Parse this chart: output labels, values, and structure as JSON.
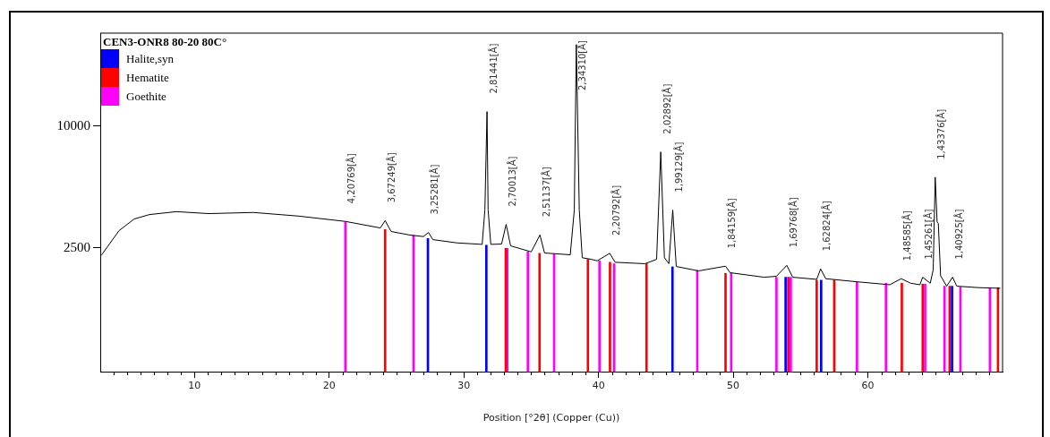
{
  "chart_data": {
    "type": "line",
    "legend_title": "CEN3-ONR8 80-20 80C°",
    "xlabel": "Position [°2θ] (Copper (Cu))",
    "xlim": [
      3,
      70
    ],
    "ylim": [
      -5100,
      15700
    ],
    "xticks": [
      {
        "value": 4,
        "label": null
      },
      {
        "value": 5,
        "label": null
      },
      {
        "value": 6,
        "label": null
      },
      {
        "value": 7,
        "label": null
      },
      {
        "value": 8,
        "label": null
      },
      {
        "value": 9,
        "label": null
      },
      10,
      {
        "value": 11,
        "label": null
      },
      {
        "value": 12,
        "label": null
      },
      {
        "value": 13,
        "label": null
      },
      {
        "value": 14,
        "label": null
      },
      {
        "value": 15,
        "label": null
      },
      {
        "value": 16,
        "label": null
      },
      {
        "value": 17,
        "label": null
      },
      {
        "value": 18,
        "label": null
      },
      {
        "value": 19,
        "label": null
      },
      20,
      {
        "value": 21,
        "label": null
      },
      {
        "value": 22,
        "label": null
      },
      {
        "value": 23,
        "label": null
      },
      {
        "value": 24,
        "label": null
      },
      {
        "value": 25,
        "label": null
      },
      {
        "value": 26,
        "label": null
      },
      {
        "value": 27,
        "label": null
      },
      {
        "value": 28,
        "label": null
      },
      {
        "value": 29,
        "label": null
      },
      30,
      {
        "value": 31,
        "label": null
      },
      {
        "value": 32,
        "label": null
      },
      {
        "value": 33,
        "label": null
      },
      {
        "value": 34,
        "label": null
      },
      {
        "value": 35,
        "label": null
      },
      {
        "value": 36,
        "label": null
      },
      {
        "value": 37,
        "label": null
      },
      {
        "value": 38,
        "label": null
      },
      {
        "value": 39,
        "label": null
      },
      40,
      {
        "value": 41,
        "label": null
      },
      {
        "value": 42,
        "label": null
      },
      {
        "value": 43,
        "label": null
      },
      {
        "value": 44,
        "label": null
      },
      {
        "value": 45,
        "label": null
      },
      {
        "value": 46,
        "label": null
      },
      {
        "value": 47,
        "label": null
      },
      {
        "value": 48,
        "label": null
      },
      {
        "value": 49,
        "label": null
      },
      50,
      {
        "value": 51,
        "label": null
      },
      {
        "value": 52,
        "label": null
      },
      {
        "value": 53,
        "label": null
      },
      {
        "value": 54,
        "label": null
      },
      {
        "value": 55,
        "label": null
      },
      {
        "value": 56,
        "label": null
      },
      {
        "value": 57,
        "label": null
      },
      {
        "value": 58,
        "label": null
      },
      {
        "value": 59,
        "label": null
      },
      60,
      {
        "value": 61,
        "label": null
      },
      {
        "value": 62,
        "label": null
      },
      {
        "value": 63,
        "label": null
      },
      {
        "value": 64,
        "label": null
      },
      {
        "value": 65,
        "label": null
      },
      {
        "value": 66,
        "label": null
      },
      {
        "value": 67,
        "label": null
      },
      {
        "value": 68,
        "label": null
      },
      {
        "value": 69,
        "label": null
      }
    ],
    "yticks": [
      2500,
      10000
    ],
    "grid": false,
    "legend": "top left",
    "marker": "none",
    "series": [
      {
        "color": "#000000",
        "x": [
          3.0,
          3.1,
          4.39,
          5.52,
          6.65,
          8.65,
          11.05,
          14.37,
          17.7,
          21.2,
          23.8,
          24.15,
          24.6,
          26.0,
          27.0,
          27.37,
          27.7,
          29.5,
          31.36,
          31.56,
          31.72,
          31.8,
          32.0,
          32.8,
          33.14,
          33.47,
          35.0,
          35.65,
          35.99,
          37.9,
          38.2,
          38.35,
          38.57,
          38.79,
          39.46,
          39.9,
          40.83,
          41.23,
          43.45,
          44.31,
          44.62,
          44.89,
          45.22,
          45.51,
          45.77,
          47.43,
          49.43,
          49.77,
          52.3,
          53.21,
          53.98,
          54.42,
          56.2,
          56.49,
          56.87,
          59.19,
          61.63,
          62.47,
          63.19,
          63.86,
          64.07,
          64.63,
          64.85,
          65.0,
          65.14,
          65.23,
          65.4,
          65.85,
          66.29,
          66.6,
          68.27,
          69.84
        ],
        "values": [
          2040,
          2070,
          3560,
          4280,
          4550,
          4730,
          4610,
          4680,
          4460,
          4130,
          3730,
          4180,
          3510,
          3290,
          3200,
          3450,
          3010,
          2810,
          2720,
          4830,
          10880,
          4830,
          2720,
          2740,
          3950,
          2630,
          2260,
          3300,
          2190,
          2080,
          4830,
          15000,
          4830,
          1900,
          1800,
          1710,
          2170,
          1620,
          1530,
          1800,
          8400,
          1910,
          1530,
          4830,
          1360,
          1090,
          1380,
          980,
          700,
          760,
          1430,
          700,
          570,
          1210,
          610,
          420,
          240,
          610,
          330,
          240,
          700,
          330,
          1160,
          6850,
          4100,
          4000,
          790,
          150,
          700,
          150,
          60,
          20
        ]
      },
      {
        "type": "bar",
        "name": "Halite,syn",
        "color": "#0000ff",
        "x": [
          27.33,
          31.67,
          45.49,
          53.89,
          56.53,
          66.25
        ],
        "base": [
          -5100,
          -5100,
          -5100,
          -5100,
          -5100,
          -5100
        ],
        "values": [
          8180,
          7770,
          6440,
          5800,
          5620,
          5250
        ]
      },
      {
        "type": "bar",
        "name": "Hematite",
        "color": "#ff0000",
        "x": [
          24.15,
          33.11,
          35.62,
          39.21,
          40.85,
          43.56,
          49.43,
          54.09,
          56.2,
          57.5,
          62.52,
          64.07,
          66.07,
          69.66
        ],
        "base": [
          -5100,
          -5100,
          -5100,
          -5100,
          -5100,
          -5100,
          -5100,
          -5100,
          -5100,
          -5100,
          -5100,
          -5100,
          -5100,
          -5100
        ],
        "values": [
          8730,
          7580,
          7270,
          6900,
          6720,
          6630,
          6040,
          5800,
          5620,
          5620,
          5430,
          5380,
          5250,
          5160
        ]
      },
      {
        "type": "bar",
        "name": "Goethite",
        "color": "#ff00ff",
        "x": [
          21.2,
          26.26,
          33.22,
          34.75,
          36.7,
          40.07,
          41.16,
          47.33,
          49.85,
          53.21,
          54.27,
          59.19,
          61.34,
          64.25,
          65.69,
          66.87,
          69.06
        ],
        "base": [
          -5100,
          -5100,
          -5100,
          -5100,
          -5100,
          -5100,
          -5100,
          -5100,
          -5100,
          -5100,
          -5100,
          -5100,
          -5100,
          -5100,
          -5100,
          -5100,
          -5100
        ],
        "values": [
          9200,
          8370,
          7580,
          7360,
          7210,
          6810,
          6630,
          6220,
          6040,
          5800,
          5800,
          5520,
          5430,
          5380,
          5250,
          5190,
          5160
        ]
      }
    ],
    "annotations": [
      {
        "text": "4,20769[Å]",
        "x": 21.2,
        "y": 4130
      },
      {
        "text": "3,67249[Å]",
        "x": 24.15,
        "y": 4180
      },
      {
        "text": "3,25281[Å]",
        "x": 27.37,
        "y": 3450
      },
      {
        "text": "2,81441[Å]",
        "x": 31.72,
        "y": 10880
      },
      {
        "text": "2,70013[Å]",
        "x": 33.14,
        "y": 3950
      },
      {
        "text": "2,51137[Å]",
        "x": 35.65,
        "y": 3300
      },
      {
        "text": "2,34310[Å]",
        "x": 38.35,
        "y": 15000
      },
      {
        "text": "2,20792[Å]",
        "x": 40.83,
        "y": 2170
      },
      {
        "text": "2,02892[Å]",
        "x": 44.62,
        "y": 8400
      },
      {
        "text": "1,99129[Å]",
        "x": 45.51,
        "y": 4830
      },
      {
        "text": "1,84159[Å]",
        "x": 49.43,
        "y": 1380
      },
      {
        "text": "1,69768[Å]",
        "x": 53.98,
        "y": 1430
      },
      {
        "text": "1,62824[Å]",
        "x": 56.49,
        "y": 1210
      },
      {
        "text": "1,48585[Å]",
        "x": 62.47,
        "y": 610
      },
      {
        "text": "1,45261[Å]",
        "x": 64.07,
        "y": 700
      },
      {
        "text": "1,43376[Å]",
        "x": 65.0,
        "y": 6850
      },
      {
        "text": "1,40925[Å]",
        "x": 66.29,
        "y": 700
      }
    ]
  }
}
